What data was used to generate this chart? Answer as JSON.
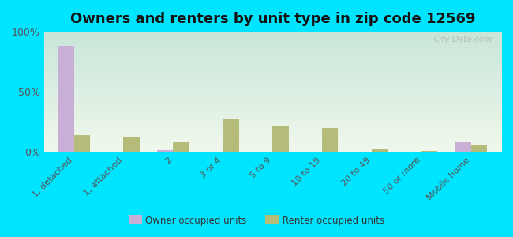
{
  "title": "Owners and renters by unit type in zip code 12569",
  "categories": [
    "1, detached",
    "1, attached",
    "2",
    "3 or 4",
    "5 to 9",
    "10 to 19",
    "20 to 49",
    "50 or more",
    "Mobile home"
  ],
  "owner_values": [
    88,
    0.5,
    1.5,
    0,
    0,
    0,
    0,
    0,
    8
  ],
  "renter_values": [
    14,
    13,
    8,
    27,
    21,
    20,
    2,
    1,
    6
  ],
  "owner_color": "#c9aed6",
  "renter_color": "#b5bc7a",
  "bg_top": "#c8e6d8",
  "bg_bottom": "#f0f8ec",
  "outer_bg": "#00e5ff",
  "ylim": [
    0,
    100
  ],
  "yticks": [
    0,
    50,
    100
  ],
  "ytick_labels": [
    "0%",
    "50%",
    "100%"
  ],
  "bar_width": 0.32,
  "title_fontsize": 13,
  "watermark": "City-Data.com",
  "legend_owner": "Owner occupied units",
  "legend_renter": "Renter occupied units"
}
